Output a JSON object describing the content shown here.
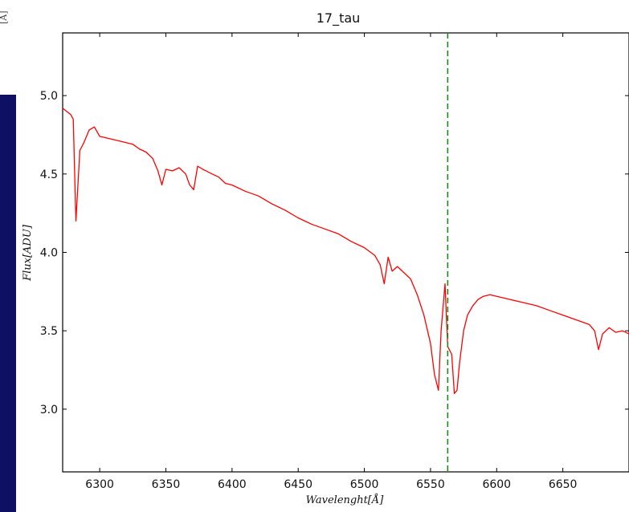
{
  "chart_data": {
    "type": "line",
    "title": "17_tau",
    "xlabel": "Wavelenght[Å]",
    "ylabel": "Flux[ADU]",
    "xlim": [
      6272,
      6700
    ],
    "ylim": [
      2.6,
      5.4
    ],
    "x_ticks": [
      6300,
      6350,
      6400,
      6450,
      6500,
      6550,
      6600,
      6650
    ],
    "y_ticks": [
      3.0,
      3.5,
      4.0,
      4.5,
      5.0
    ],
    "grid": false,
    "series": [
      {
        "color": "#ff0000",
        "x": [
          6272,
          6275,
          6278,
          6280,
          6282,
          6285,
          6288,
          6292,
          6296,
          6300,
          6305,
          6310,
          6315,
          6320,
          6325,
          6330,
          6335,
          6340,
          6344,
          6347,
          6350,
          6355,
          6360,
          6365,
          6368,
          6371,
          6374,
          6378,
          6385,
          6390,
          6395,
          6400,
          6410,
          6420,
          6430,
          6440,
          6450,
          6460,
          6470,
          6480,
          6490,
          6500,
          6508,
          6512,
          6515,
          6518,
          6521,
          6525,
          6530,
          6535,
          6540,
          6545,
          6550,
          6553,
          6556,
          6558,
          6561,
          6563,
          6566,
          6568,
          6570,
          6572,
          6575,
          6578,
          6582,
          6586,
          6590,
          6595,
          6600,
          6610,
          6620,
          6630,
          6640,
          6650,
          6660,
          6670,
          6674,
          6677,
          6680,
          6685,
          6690,
          6695,
          6700
        ],
        "y": [
          4.92,
          4.9,
          4.88,
          4.85,
          4.2,
          4.65,
          4.7,
          4.78,
          4.8,
          4.74,
          4.73,
          4.72,
          4.71,
          4.7,
          4.69,
          4.66,
          4.64,
          4.6,
          4.52,
          4.43,
          4.53,
          4.52,
          4.54,
          4.5,
          4.43,
          4.4,
          4.55,
          4.53,
          4.5,
          4.48,
          4.44,
          4.43,
          4.39,
          4.36,
          4.31,
          4.27,
          4.22,
          4.18,
          4.15,
          4.12,
          4.07,
          4.03,
          3.98,
          3.92,
          3.8,
          3.97,
          3.88,
          3.91,
          3.87,
          3.83,
          3.73,
          3.6,
          3.42,
          3.22,
          3.12,
          3.5,
          3.8,
          3.4,
          3.35,
          3.1,
          3.12,
          3.3,
          3.5,
          3.6,
          3.66,
          3.7,
          3.72,
          3.73,
          3.72,
          3.7,
          3.68,
          3.66,
          3.63,
          3.6,
          3.57,
          3.54,
          3.5,
          3.38,
          3.48,
          3.52,
          3.49,
          3.5,
          3.48
        ]
      }
    ],
    "reference_line": {
      "x": 6563,
      "color": "#1a8a1a",
      "style": "dashed"
    }
  },
  "corner_text": "[Å]"
}
